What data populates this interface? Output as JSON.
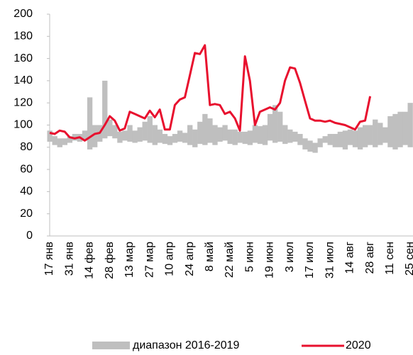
{
  "chart_data": {
    "type": "range-line",
    "categories": [
      "17 янв",
      null,
      null,
      null,
      "31 янв",
      null,
      null,
      null,
      "14 фев",
      null,
      null,
      null,
      "28 фев",
      null,
      null,
      null,
      "13 мар",
      null,
      null,
      null,
      "27 мар",
      null,
      null,
      null,
      "10 апр",
      null,
      null,
      null,
      "24 апр",
      null,
      null,
      null,
      "8 май",
      null,
      null,
      null,
      "22 май",
      null,
      null,
      null,
      "5 июн",
      null,
      null,
      null,
      "19 июн",
      null,
      null,
      null,
      "3 июл",
      null,
      null,
      null,
      "17 июл",
      null,
      null,
      null,
      "31 июл",
      null,
      null,
      null,
      "14 авг",
      null,
      null,
      null,
      "28 авг",
      null,
      null,
      null,
      "11 сен",
      null,
      null,
      null,
      "25 сен"
    ],
    "ylim": [
      0,
      200
    ],
    "yticks": [
      0,
      20,
      40,
      60,
      80,
      100,
      120,
      140,
      160,
      180,
      200
    ],
    "band": {
      "name": "диапазон 2016-2019",
      "color": "#bfbfbf",
      "low": [
        85,
        82,
        80,
        82,
        84,
        86,
        85,
        86,
        78,
        80,
        85,
        88,
        90,
        88,
        84,
        86,
        85,
        84,
        85,
        86,
        84,
        82,
        84,
        83,
        82,
        84,
        85,
        84,
        82,
        80,
        83,
        82,
        84,
        82,
        85,
        86,
        83,
        82,
        84,
        83,
        82,
        84,
        83,
        82,
        86,
        84,
        85,
        83,
        84,
        85,
        82,
        78,
        76,
        75,
        80,
        84,
        82,
        80,
        80,
        78,
        82,
        80,
        78,
        80,
        82,
        80,
        82,
        84,
        80,
        78,
        80,
        82,
        80
      ],
      "high": [
        95,
        90,
        88,
        88,
        90,
        92,
        92,
        95,
        125,
        100,
        100,
        140,
        105,
        100,
        94,
        95,
        100,
        95,
        98,
        103,
        108,
        100,
        96,
        92,
        90,
        92,
        95,
        93,
        100,
        96,
        103,
        110,
        106,
        100,
        98,
        100,
        96,
        96,
        94,
        94,
        95,
        100,
        99,
        100,
        110,
        118,
        112,
        100,
        96,
        94,
        92,
        88,
        86,
        84,
        88,
        90,
        92,
        92,
        94,
        95,
        96,
        95,
        98,
        100,
        100,
        105,
        102,
        98,
        108,
        110,
        112,
        112,
        120
      ]
    },
    "series": [
      {
        "name": "2020",
        "color": "#e8102e",
        "values": [
          93,
          92,
          95,
          94,
          89,
          88,
          89,
          86,
          89,
          92,
          93,
          100,
          108,
          104,
          95,
          97,
          112,
          110,
          108,
          106,
          113,
          107,
          114,
          96,
          96,
          118,
          123,
          125,
          145,
          165,
          164,
          172,
          118,
          119,
          118,
          110,
          112,
          106,
          95,
          162,
          140,
          100,
          112,
          114,
          116,
          114,
          120,
          140,
          152,
          151,
          138,
          122,
          106,
          104,
          104,
          103,
          104,
          102,
          101,
          100,
          98,
          96,
          103,
          104,
          126,
          null,
          null,
          null,
          null,
          null,
          null,
          null,
          null
        ]
      }
    ]
  }
}
